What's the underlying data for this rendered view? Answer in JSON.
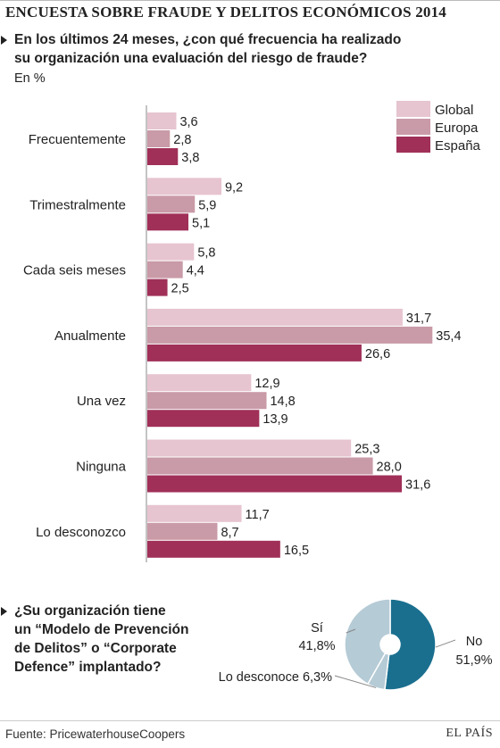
{
  "header": {
    "title": "ENCUESTA SOBRE FRAUDE Y DELITOS ECONÓMICOS 2014",
    "question1_line1": "En los últimos 24 meses, ¿con qué frecuencia ha realizado",
    "question1_line2": "su organización una evaluación del riesgo de fraude?",
    "unit": "En %"
  },
  "chart_data": [
    {
      "type": "bar",
      "orientation": "horizontal",
      "categories": [
        "Frecuentemente",
        "Trimestralmente",
        "Cada seis meses",
        "Anualmente",
        "Una vez",
        "Ninguna",
        "Lo desconozco"
      ],
      "series": [
        {
          "name": "Global",
          "color": "#e6c4d0",
          "values": [
            3.6,
            9.2,
            5.8,
            31.7,
            12.9,
            25.3,
            11.7
          ],
          "labels": [
            "3,6",
            "9,2",
            "5,8",
            "31,7",
            "12,9",
            "25,3",
            "11,7"
          ]
        },
        {
          "name": "Europa",
          "color": "#c99aa7",
          "values": [
            2.8,
            5.9,
            4.4,
            35.4,
            14.8,
            28.0,
            8.7
          ],
          "labels": [
            "2,8",
            "5,9",
            "4,4",
            "35,4",
            "14,8",
            "28,0",
            "8,7"
          ]
        },
        {
          "name": "España",
          "color": "#a03058",
          "values": [
            3.8,
            5.1,
            2.5,
            26.6,
            13.9,
            31.6,
            16.5
          ],
          "labels": [
            "3,8",
            "5,1",
            "2,5",
            "26,6",
            "13,9",
            "31,6",
            "16,5"
          ]
        }
      ],
      "legend_position": "top-right",
      "grid": false
    },
    {
      "type": "pie",
      "donut": true,
      "slices": [
        {
          "name": "No",
          "value": 51.9,
          "label": "51,9%",
          "color": "#1a6f8f"
        },
        {
          "name": "Lo desconoce",
          "value": 6.3,
          "label": "6,3%",
          "color": "#b5cbd6"
        },
        {
          "name": "Sí",
          "value": 41.8,
          "label": "41,8%",
          "color": "#b5cbd6"
        }
      ]
    }
  ],
  "question2": {
    "lines": [
      "¿Su organización tiene",
      "un “Modelo de Prevención",
      "de Delitos” o “Corporate",
      "Defence” implantado?"
    ]
  },
  "footer": {
    "source": "Fuente: PricewaterhouseCoopers",
    "brand": "EL PAÍS"
  }
}
